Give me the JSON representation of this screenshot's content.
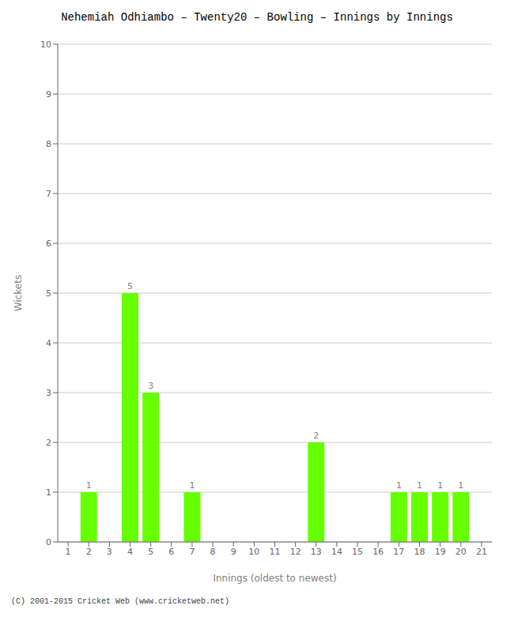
{
  "chart_data": {
    "type": "bar",
    "title": "Nehemiah Odhiambo – Twenty20 – Bowling – Innings by Innings",
    "xlabel": "Innings (oldest to newest)",
    "ylabel": "Wickets",
    "categories": [
      "1",
      "2",
      "3",
      "4",
      "5",
      "6",
      "7",
      "8",
      "9",
      "10",
      "11",
      "12",
      "13",
      "14",
      "15",
      "16",
      "17",
      "18",
      "19",
      "20",
      "21"
    ],
    "values": [
      0,
      1,
      0,
      5,
      3,
      0,
      1,
      0,
      0,
      0,
      0,
      0,
      2,
      0,
      0,
      0,
      1,
      1,
      1,
      1,
      0
    ],
    "color": "#66ff00",
    "ylim": [
      0,
      10
    ],
    "yticks": [
      0,
      1,
      2,
      3,
      4,
      5,
      6,
      7,
      8,
      9,
      10
    ],
    "grid": true,
    "data_labels": true,
    "annotations": [
      "(C) 2001-2015 Cricket Web (www.cricketweb.net)"
    ]
  }
}
